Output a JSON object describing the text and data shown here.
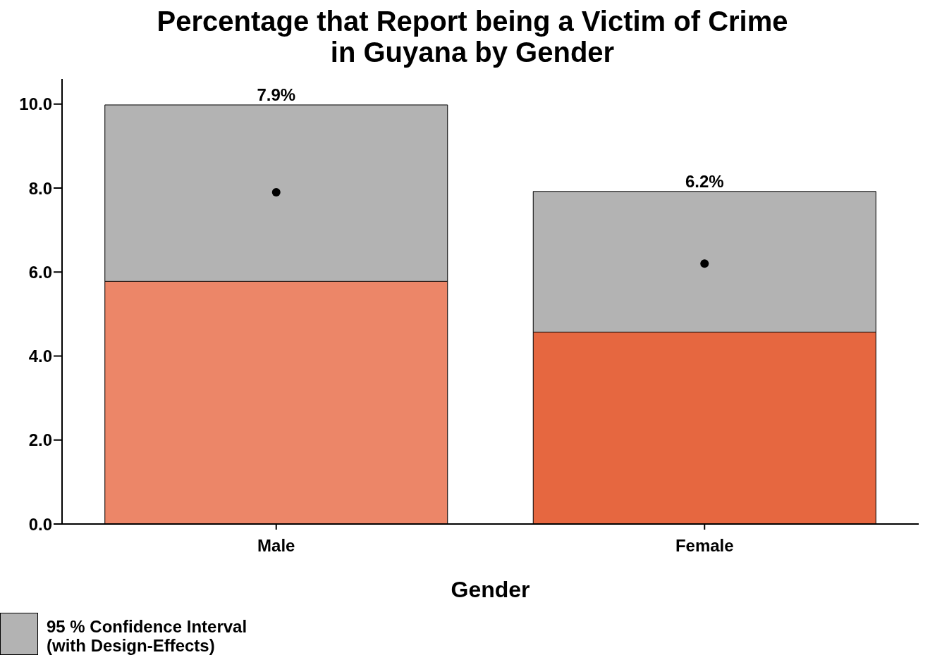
{
  "chart_data": {
    "type": "bar",
    "title": "Percentage that Report being a Victim of Crime in Guyana by Gender",
    "xlabel": "Gender",
    "categories": [
      "Male",
      "Female"
    ],
    "stacked": true,
    "series": [
      {
        "colors": [
          "#ec8668",
          "#e66740"
        ],
        "values": [
          5.78,
          4.57
        ]
      },
      {
        "name": "95 % Confidence Interval (with Design-Effects)",
        "color": "#b3b3b3",
        "values": [
          4.2,
          3.35
        ]
      },
      {
        "type": "scatter",
        "color": "#000000",
        "x": [
          "Male",
          "Female"
        ],
        "values": [
          7.9,
          6.2
        ]
      }
    ],
    "annotations": [
      {
        "text": "7.9%",
        "x": "Male",
        "y": 9.98
      },
      {
        "text": "6.2%",
        "x": "Female",
        "y": 7.92
      }
    ],
    "ylim": [
      0,
      10.6
    ],
    "yticks": [
      {
        "value": 0,
        "label": "0.0"
      },
      {
        "value": 2,
        "label": "2.0"
      },
      {
        "value": 4,
        "label": "4.0"
      },
      {
        "value": 6,
        "label": "6.0"
      },
      {
        "value": 8,
        "label": "8.0"
      },
      {
        "value": 10,
        "label": "10.0"
      }
    ],
    "grid": false,
    "legend": "bottom left",
    "marker": "circle"
  }
}
